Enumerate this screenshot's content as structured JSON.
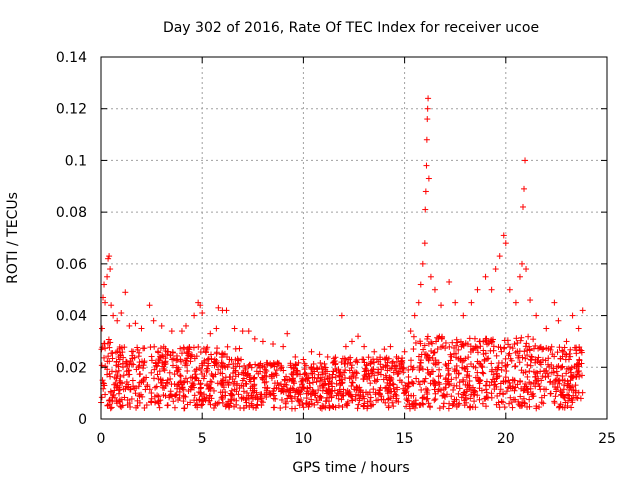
{
  "chart_data": {
    "type": "scatter",
    "title": "Day 302 of 2016, Rate Of TEC Index for receiver ucoe",
    "xlabel": "GPS time / hours",
    "ylabel": "ROTI / TECUs",
    "xlim": [
      0,
      25
    ],
    "ylim": [
      0,
      0.14
    ],
    "xticks": [
      0,
      5,
      10,
      15,
      20,
      25
    ],
    "xtick_labels": [
      "0",
      "5",
      "10",
      "15",
      "20",
      "25"
    ],
    "yticks": [
      0,
      0.02,
      0.04,
      0.06,
      0.08,
      0.1,
      0.12,
      0.14
    ],
    "ytick_labels": [
      "0",
      "0.02",
      "0.04",
      "0.06",
      "0.08",
      "0.1",
      "0.12",
      "0.14"
    ],
    "grid": true,
    "marker": "plus",
    "color": "#ff0000",
    "series": [
      {
        "name": "ROTI",
        "points": [
          [
            0.05,
            0.035
          ],
          [
            0.1,
            0.047
          ],
          [
            0.15,
            0.052
          ],
          [
            0.2,
            0.045
          ],
          [
            0.3,
            0.055
          ],
          [
            0.35,
            0.062
          ],
          [
            0.4,
            0.063
          ],
          [
            0.45,
            0.058
          ],
          [
            0.5,
            0.044
          ],
          [
            0.6,
            0.04
          ],
          [
            0.8,
            0.038
          ],
          [
            1.0,
            0.041
          ],
          [
            1.2,
            0.049
          ],
          [
            1.4,
            0.036
          ],
          [
            1.7,
            0.037
          ],
          [
            2.0,
            0.035
          ],
          [
            2.4,
            0.044
          ],
          [
            2.6,
            0.038
          ],
          [
            3.0,
            0.036
          ],
          [
            3.5,
            0.034
          ],
          [
            4.0,
            0.034
          ],
          [
            4.2,
            0.036
          ],
          [
            4.6,
            0.04
          ],
          [
            4.8,
            0.045
          ],
          [
            4.9,
            0.044
          ],
          [
            5.0,
            0.041
          ],
          [
            5.4,
            0.033
          ],
          [
            5.7,
            0.035
          ],
          [
            5.8,
            0.043
          ],
          [
            6.0,
            0.042
          ],
          [
            6.2,
            0.042
          ],
          [
            6.6,
            0.035
          ],
          [
            7.0,
            0.034
          ],
          [
            7.3,
            0.034
          ],
          [
            7.6,
            0.031
          ],
          [
            8.0,
            0.03
          ],
          [
            8.5,
            0.029
          ],
          [
            9.0,
            0.028
          ],
          [
            9.2,
            0.033
          ],
          [
            9.6,
            0.024
          ],
          [
            10.0,
            0.023
          ],
          [
            10.4,
            0.026
          ],
          [
            10.8,
            0.025
          ],
          [
            11.2,
            0.024
          ],
          [
            11.5,
            0.022
          ],
          [
            11.9,
            0.04
          ],
          [
            12.1,
            0.028
          ],
          [
            12.4,
            0.03
          ],
          [
            12.7,
            0.032
          ],
          [
            13.0,
            0.028
          ],
          [
            13.5,
            0.026
          ],
          [
            14.0,
            0.027
          ],
          [
            14.3,
            0.028
          ],
          [
            14.6,
            0.024
          ],
          [
            15.0,
            0.026
          ],
          [
            15.3,
            0.034
          ],
          [
            15.5,
            0.04
          ],
          [
            15.7,
            0.045
          ],
          [
            15.8,
            0.052
          ],
          [
            15.9,
            0.06
          ],
          [
            16.0,
            0.068
          ],
          [
            16.02,
            0.081
          ],
          [
            16.05,
            0.088
          ],
          [
            16.08,
            0.098
          ],
          [
            16.1,
            0.108
          ],
          [
            16.12,
            0.116
          ],
          [
            16.14,
            0.12
          ],
          [
            16.16,
            0.124
          ],
          [
            16.2,
            0.093
          ],
          [
            16.3,
            0.055
          ],
          [
            16.5,
            0.05
          ],
          [
            16.8,
            0.044
          ],
          [
            17.2,
            0.053
          ],
          [
            17.5,
            0.045
          ],
          [
            17.9,
            0.04
          ],
          [
            18.3,
            0.045
          ],
          [
            18.6,
            0.05
          ],
          [
            19.0,
            0.055
          ],
          [
            19.3,
            0.05
          ],
          [
            19.5,
            0.058
          ],
          [
            19.7,
            0.063
          ],
          [
            19.9,
            0.071
          ],
          [
            20.0,
            0.068
          ],
          [
            20.2,
            0.05
          ],
          [
            20.5,
            0.045
          ],
          [
            20.7,
            0.055
          ],
          [
            20.8,
            0.06
          ],
          [
            20.85,
            0.082
          ],
          [
            20.9,
            0.089
          ],
          [
            20.95,
            0.1
          ],
          [
            21.0,
            0.058
          ],
          [
            21.2,
            0.046
          ],
          [
            21.5,
            0.04
          ],
          [
            22.0,
            0.035
          ],
          [
            22.4,
            0.045
          ],
          [
            22.6,
            0.038
          ],
          [
            23.0,
            0.03
          ],
          [
            23.3,
            0.04
          ],
          [
            23.6,
            0.035
          ],
          [
            23.8,
            0.042
          ]
        ]
      }
    ]
  }
}
